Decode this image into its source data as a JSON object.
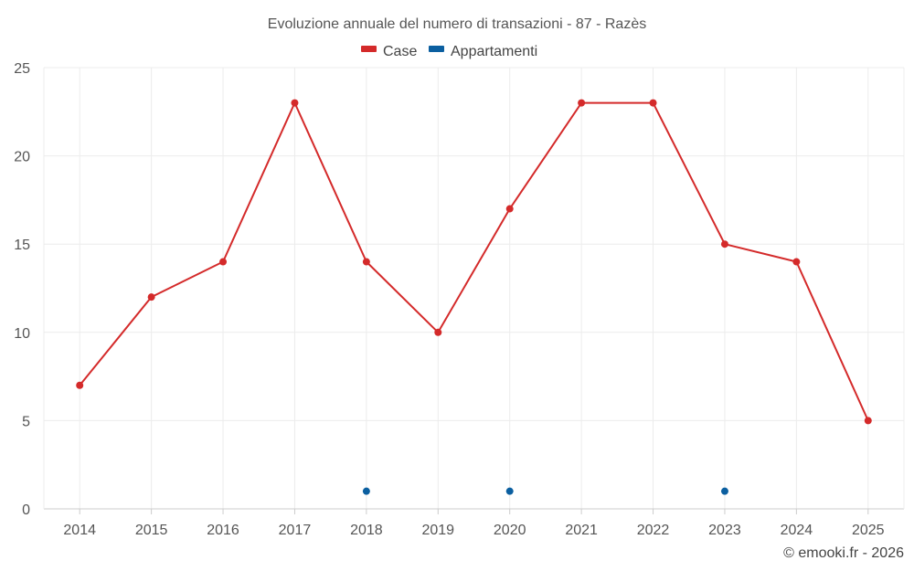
{
  "chart_data": {
    "type": "line",
    "title": "Evoluzione annuale del numero di transazioni - 87 - Razès",
    "categories": [
      "2014",
      "2015",
      "2016",
      "2017",
      "2018",
      "2019",
      "2020",
      "2021",
      "2022",
      "2023",
      "2024",
      "2025"
    ],
    "series": [
      {
        "name": "Case",
        "color": "#d42a2a",
        "values": [
          7,
          12,
          14,
          23,
          14,
          10,
          17,
          23,
          23,
          15,
          14,
          5
        ]
      },
      {
        "name": "Appartamenti",
        "color": "#0b5fa0",
        "values": [
          null,
          null,
          null,
          null,
          1,
          null,
          1,
          null,
          null,
          1,
          null,
          null
        ]
      }
    ],
    "ylim": [
      0,
      25
    ],
    "yticks": [
      0,
      5,
      10,
      15,
      20,
      25
    ],
    "ytick_labels": [
      "0",
      "5",
      "10",
      "15",
      "20",
      "25"
    ],
    "xlabel": "",
    "ylabel": "",
    "grid": true,
    "legend_position": "top-center"
  },
  "credit": "© emooki.fr - 2026"
}
